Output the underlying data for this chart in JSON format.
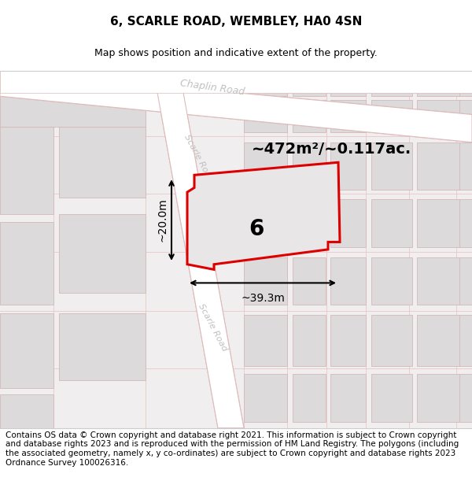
{
  "title": "6, SCARLE ROAD, WEMBLEY, HA0 4SN",
  "subtitle": "Map shows position and indicative extent of the property.",
  "area_text": "~472m²/~0.117ac.",
  "label_number": "6",
  "width_label": "~39.3m",
  "height_label": "~20.0m",
  "footer": "Contains OS data © Crown copyright and database right 2021. This information is subject to Crown copyright and database rights 2023 and is reproduced with the permission of HM Land Registry. The polygons (including the associated geometry, namely x, y co-ordinates) are subject to Crown copyright and database rights 2023 Ordnance Survey 100026316.",
  "map_bg": "#f0eeee",
  "road_fill": "#ffffff",
  "road_edge": "#ddbbbb",
  "block_fill": "#e8e6e6",
  "block_edge": "#d4b8b8",
  "block_inner_fill": "#dcdada",
  "property_fill": "#e8e6e6",
  "property_stroke": "#dd0000",
  "title_fontsize": 11,
  "subtitle_fontsize": 9,
  "area_fontsize": 14,
  "label_fontsize": 20,
  "dim_fontsize": 10,
  "road_label_color": "#bbbbbb",
  "footer_fontsize": 7.5
}
